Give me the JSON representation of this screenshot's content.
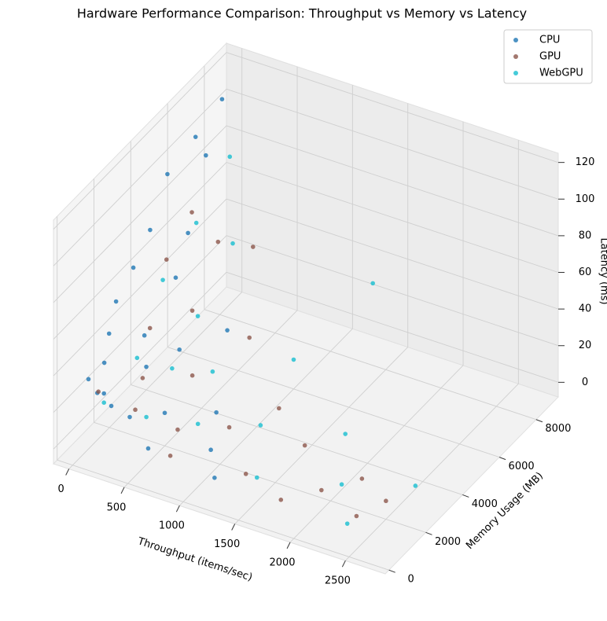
{
  "chart_data": {
    "type": "scatter3d",
    "title": "Hardware Performance Comparison: Throughput vs Memory vs Latency",
    "xlabel": "Throughput (items/sec)",
    "ylabel": "Memory Usage (MB)",
    "zlabel": "Latency (ms)",
    "xlim": [
      -140,
      2860
    ],
    "ylim": [
      -200,
      9200
    ],
    "zlim": [
      -8,
      125
    ],
    "xticks": [
      0,
      500,
      1000,
      1500,
      2000,
      2500
    ],
    "yticks": [
      0,
      2000,
      4000,
      6000,
      8000
    ],
    "zticks": [
      0,
      20,
      40,
      60,
      80,
      100,
      120
    ],
    "grid": true,
    "legend": "upper right",
    "series": [
      {
        "name": "CPU",
        "color": "#1f77b4",
        "x": [
          20,
          30,
          25,
          40,
          35,
          50,
          60,
          45,
          80,
          100,
          120,
          150,
          200,
          250,
          300,
          350,
          400,
          500,
          600,
          800,
          1000,
          1200,
          60,
          90,
          150
        ],
        "y": [
          8000,
          6500,
          5000,
          7000,
          4000,
          3000,
          2000,
          6000,
          1500,
          5000,
          1000,
          3000,
          500,
          2500,
          4000,
          1000,
          6000,
          2000,
          500,
          3000,
          1500,
          500,
          500,
          800,
          1200
        ],
        "z": [
          110,
          105,
          100,
          90,
          80,
          70,
          62,
          58,
          50,
          45,
          40,
          35,
          30,
          25,
          20,
          15,
          12,
          10,
          8,
          6,
          5,
          4,
          35,
          25,
          15
        ]
      },
      {
        "name": "GPU",
        "color": "#8c564b",
        "x": [
          80,
          100,
          150,
          200,
          250,
          300,
          400,
          500,
          600,
          700,
          800,
          1000,
          1200,
          1400,
          1600,
          1800,
          2000,
          2200,
          2400,
          2500,
          300,
          150
        ],
        "y": [
          6000,
          4500,
          7000,
          3000,
          5000,
          2000,
          1000,
          3500,
          6000,
          1500,
          500,
          2500,
          4000,
          1000,
          3000,
          500,
          1500,
          2500,
          1000,
          2000,
          8000,
          500
        ],
        "z": [
          70,
          60,
          45,
          40,
          30,
          25,
          20,
          15,
          12,
          10,
          8,
          7,
          6,
          5,
          4,
          4,
          3,
          3,
          2,
          2,
          35,
          30
        ]
      },
      {
        "name": "WebGPU",
        "color": "#17becf",
        "x": [
          90,
          120,
          150,
          200,
          250,
          300,
          400,
          500,
          600,
          800,
          1000,
          1200,
          1500,
          1800,
          2100,
          2400,
          2600,
          200,
          1300
        ],
        "y": [
          8000,
          6000,
          4000,
          7500,
          2000,
          5000,
          3000,
          1000,
          4000,
          2000,
          6000,
          3000,
          1000,
          4000,
          2000,
          500,
          3000,
          500,
          8500
        ],
        "z": [
          80,
          65,
          55,
          40,
          35,
          28,
          22,
          18,
          14,
          10,
          8,
          7,
          5,
          4,
          3,
          3,
          2,
          25,
          30
        ]
      }
    ]
  }
}
